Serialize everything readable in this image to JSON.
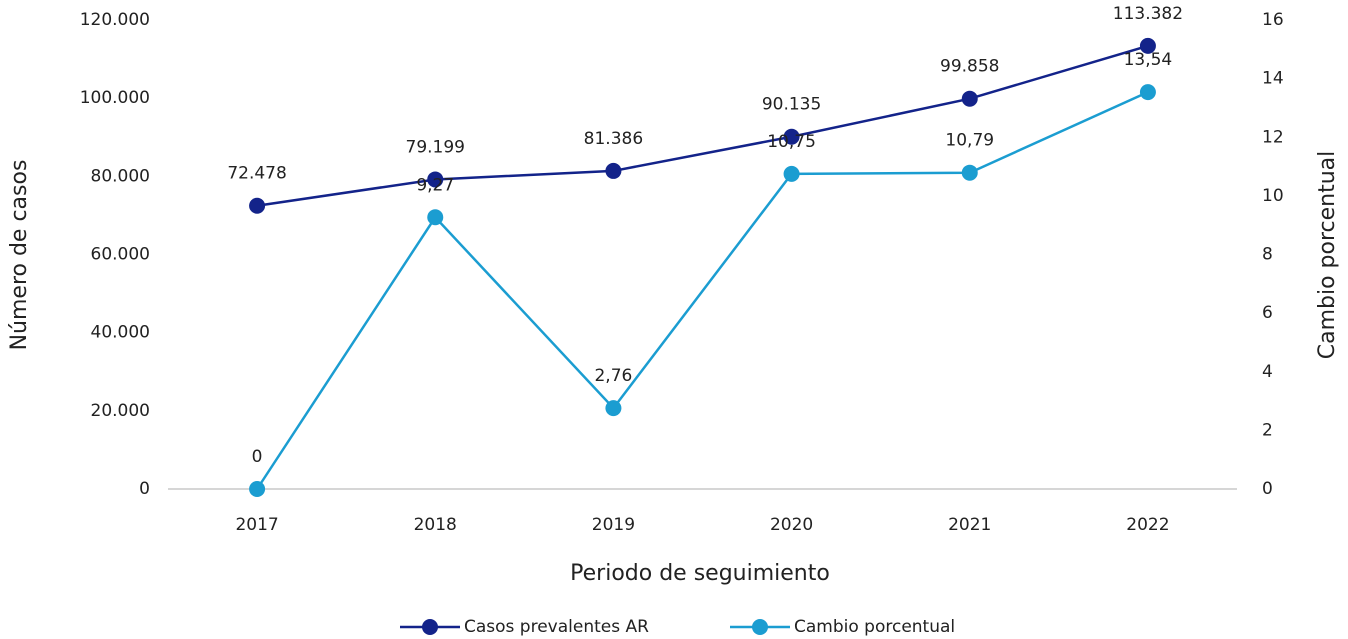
{
  "chart_data": {
    "type": "line",
    "x_label": "Periodo de seguimiento",
    "y_label": "Número de casos",
    "y2_label": "Cambio porcentual",
    "categories": [
      "2017",
      "2018",
      "2019",
      "2020",
      "2021",
      "2022"
    ],
    "series": [
      {
        "name": "Casos prevalentes AR",
        "color": "#13238a",
        "values": [
          72478,
          79199,
          81386,
          90135,
          99858,
          113382
        ],
        "value_labels": [
          "72.478",
          "79.199",
          "81.386",
          "90.135",
          "99.858",
          "113.382"
        ]
      },
      {
        "name": "Cambio porcentual",
        "color": "#1b9dd1",
        "axis": "y2",
        "values": [
          0,
          9.27,
          2.76,
          10.75,
          10.79,
          13.54
        ],
        "value_labels": [
          "0",
          "9,27",
          "2,76",
          "10,75",
          "10,79",
          "13,54"
        ]
      }
    ],
    "ylim": [
      0,
      120000
    ],
    "yticks": [
      0,
      {
        "value": 20000,
        "label": "20.000"
      },
      {
        "value": 40000,
        "label": "40.000"
      },
      {
        "value": 60000,
        "label": "60.000"
      },
      {
        "value": 80000,
        "label": "80.000"
      },
      {
        "value": 100000,
        "label": "100.000"
      },
      {
        "value": 120000,
        "label": "120.000"
      }
    ],
    "y2lim": [
      0,
      16
    ],
    "y2ticks": [
      0,
      2,
      4,
      6,
      8,
      10,
      12,
      14,
      16
    ],
    "grid": false,
    "legend": "bottom"
  }
}
